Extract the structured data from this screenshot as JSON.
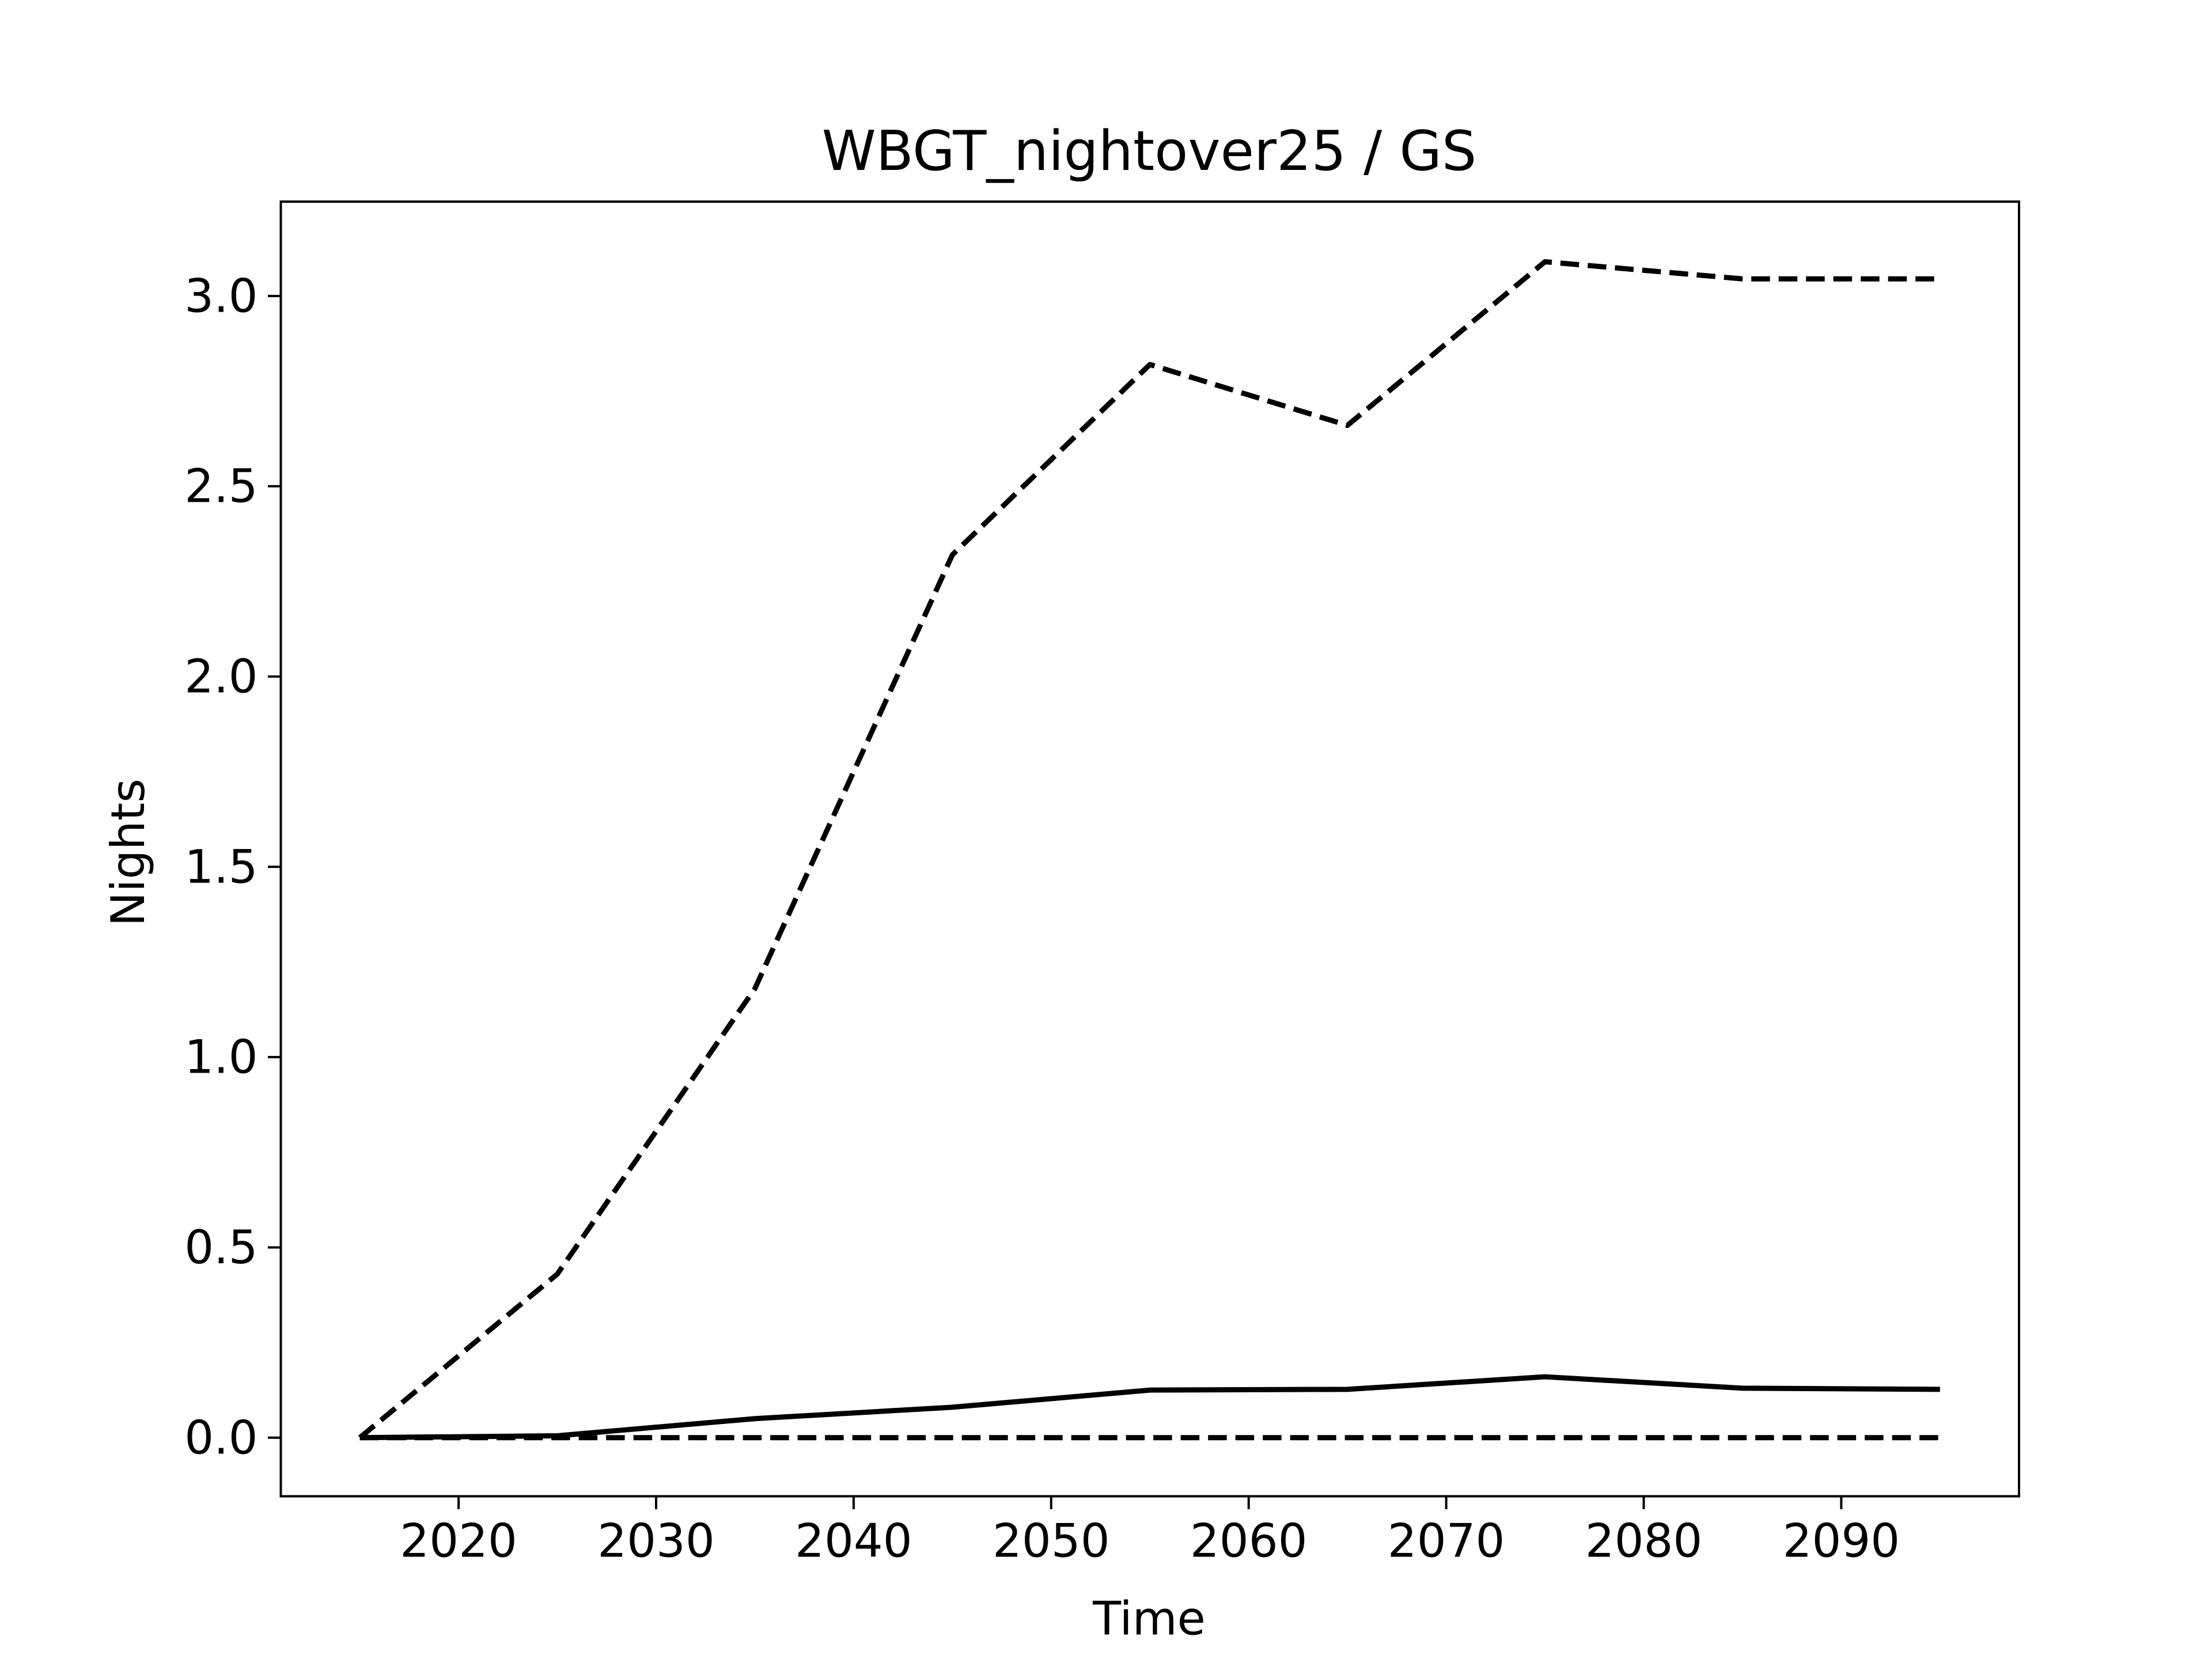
{
  "chart_data": {
    "type": "line",
    "title": "WBGT_nightover25 / GS",
    "xlabel": "Time",
    "ylabel": "Nights",
    "x": [
      2015,
      2025,
      2035,
      2045,
      2055,
      2065,
      2075,
      2085,
      2095
    ],
    "series": [
      {
        "color": "#000000",
        "linestyle": "dashed",
        "values": [
          0,
          0.43,
          1.18,
          2.32,
          2.82,
          2.66,
          3.09,
          3.045,
          3.045
        ]
      },
      {
        "color": "#000000",
        "linestyle": "solid",
        "values": [
          0,
          0.005,
          0.05,
          0.08,
          0.125,
          0.127,
          0.16,
          0.13,
          0.127
        ]
      },
      {
        "color": "#000000",
        "linestyle": "dashed",
        "values": [
          0,
          0,
          0,
          0,
          0,
          0,
          0,
          0,
          0
        ]
      }
    ],
    "xlim": [
      2011,
      2099
    ],
    "xticks": [
      2020,
      2030,
      2040,
      2050,
      2060,
      2070,
      2080,
      2090
    ],
    "ylim": [
      -0.154,
      3.248
    ],
    "yticks": [
      {
        "value": 0,
        "label": "0.0"
      },
      {
        "value": 0.5,
        "label": "0.5"
      },
      {
        "value": 1,
        "label": "1.0"
      },
      {
        "value": 1.5,
        "label": "1.5"
      },
      {
        "value": 2,
        "label": "2.0"
      },
      {
        "value": 2.5,
        "label": "2.5"
      },
      {
        "value": 3,
        "label": "3.0"
      }
    ],
    "grid": false
  }
}
